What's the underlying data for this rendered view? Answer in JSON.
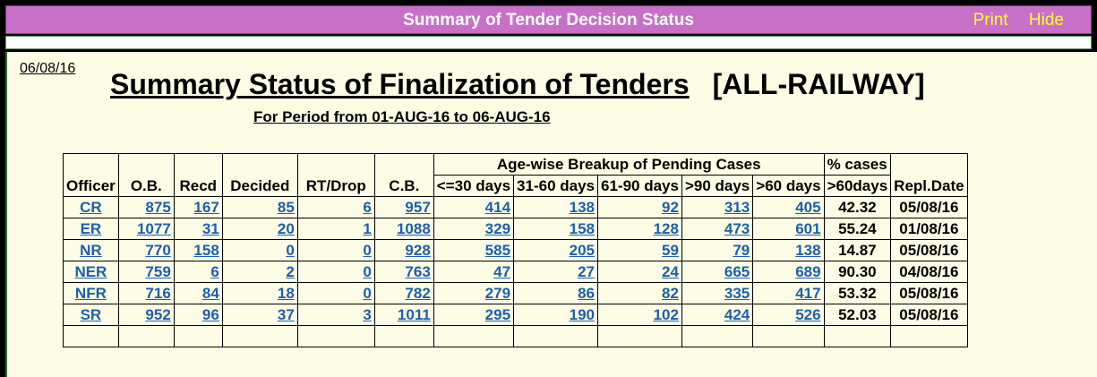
{
  "window": {
    "title": "Summary of Tender Decision Status",
    "print_label": "Print",
    "hide_label": "Hide"
  },
  "report": {
    "date": "06/08/16",
    "title": "Summary Status of Finalization of Tenders",
    "scope": "[ALL-RAILWAY]",
    "period": "For Period from 01-AUG-16 to 06-AUG-16"
  },
  "table": {
    "group_header": "Age-wise Breakup of Pending Cases",
    "pct_header_top": "% cases",
    "columns": [
      "Officer",
      "O.B.",
      "Recd",
      "Decided",
      "RT/Drop",
      "C.B.",
      "<=30 days",
      "31-60 days",
      "61-90 days",
      ">90 days",
      ">60 days",
      ">60days",
      "Repl.Date"
    ],
    "rows": [
      [
        "CR",
        "875",
        "167",
        "85",
        "6",
        "957",
        "414",
        "138",
        "92",
        "313",
        "405",
        "42.32",
        "05/08/16"
      ],
      [
        "ER",
        "1077",
        "31",
        "20",
        "1",
        "1088",
        "329",
        "158",
        "128",
        "473",
        "601",
        "55.24",
        "01/08/16"
      ],
      [
        "NR",
        "770",
        "158",
        "0",
        "0",
        "928",
        "585",
        "205",
        "59",
        "79",
        "138",
        "14.87",
        "05/08/16"
      ],
      [
        "NER",
        "759",
        "6",
        "2",
        "0",
        "763",
        "47",
        "27",
        "24",
        "665",
        "689",
        "90.30",
        "04/08/16"
      ],
      [
        "NFR",
        "716",
        "84",
        "18",
        "0",
        "782",
        "279",
        "86",
        "82",
        "335",
        "417",
        "53.32",
        "05/08/16"
      ],
      [
        "SR",
        "952",
        "96",
        "37",
        "3",
        "1011",
        "295",
        "190",
        "102",
        "424",
        "526",
        "52.03",
        "05/08/16"
      ]
    ]
  }
}
